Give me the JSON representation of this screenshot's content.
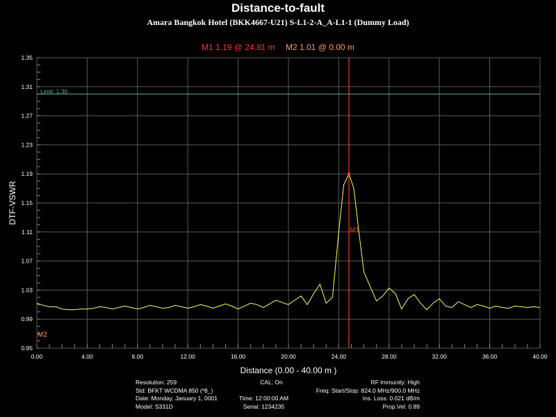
{
  "header": {
    "title": "Distance-to-fault",
    "subtitle": "Amara Bangkok Hotel (BKK4667-U21) S-L1-2-A_A-L1-1 (Dummy Load)",
    "marker1_readout": "M1  1.19 @ 24.81 m",
    "marker2_readout": "M2  1.01 @ 0.00 m"
  },
  "chart_data": {
    "type": "line",
    "xlabel": "Distance (0.00 - 40.00 m )",
    "ylabel": "DTF-VSWR",
    "xlim": [
      0,
      40
    ],
    "ylim": [
      0.95,
      1.35
    ],
    "x_ticks": [
      "0.00",
      "4.00",
      "8.00",
      "12.00",
      "16.00",
      "20.00",
      "24.00",
      "28.00",
      "32.00",
      "36.00",
      "40.00"
    ],
    "y_ticks": [
      "0.95",
      "0.99",
      "1.03",
      "1.07",
      "1.11",
      "1.15",
      "1.19",
      "1.23",
      "1.27",
      "1.31",
      "1.35"
    ],
    "grid": true,
    "limit": {
      "value": 1.3,
      "label": "Limit: 1.30"
    },
    "markers": [
      {
        "name": "M1",
        "x": 24.81,
        "y": 1.19
      },
      {
        "name": "M2",
        "x": 0.0,
        "y": 1.01
      }
    ],
    "series": [
      {
        "color": "#ffff66",
        "x": [
          0,
          0.5,
          1,
          1.5,
          2,
          2.5,
          3,
          3.5,
          4,
          4.5,
          5,
          5.5,
          6,
          6.5,
          7,
          7.5,
          8,
          8.5,
          9,
          9.5,
          10,
          10.5,
          11,
          11.5,
          12,
          12.5,
          13,
          13.5,
          14,
          14.5,
          15,
          15.5,
          16,
          16.5,
          17,
          17.5,
          18,
          18.5,
          19,
          19.5,
          20,
          20.5,
          21,
          21.5,
          22,
          22.5,
          23,
          23.5,
          24,
          24.4,
          24.81,
          25.2,
          25.6,
          26,
          26.5,
          27,
          27.5,
          28,
          28.5,
          29,
          29.5,
          30,
          30.5,
          31,
          31.5,
          32,
          32.5,
          33,
          33.5,
          34,
          34.5,
          35,
          35.5,
          36,
          36.5,
          37,
          37.5,
          38,
          38.5,
          39,
          39.5,
          40
        ],
        "values": [
          1.012,
          1.009,
          1.007,
          1.007,
          1.004,
          1.003,
          1.003,
          1.004,
          1.004,
          1.005,
          1.007,
          1.006,
          1.004,
          1.006,
          1.008,
          1.006,
          1.004,
          1.006,
          1.009,
          1.007,
          1.005,
          1.006,
          1.009,
          1.007,
          1.005,
          1.007,
          1.01,
          1.008,
          1.005,
          1.008,
          1.011,
          1.008,
          1.004,
          1.008,
          1.012,
          1.01,
          1.006,
          1.011,
          1.016,
          1.013,
          1.01,
          1.016,
          1.022,
          1.01,
          1.025,
          1.038,
          1.012,
          1.02,
          1.11,
          1.175,
          1.19,
          1.17,
          1.11,
          1.055,
          1.035,
          1.015,
          1.022,
          1.033,
          1.025,
          1.004,
          1.018,
          1.024,
          1.012,
          1.003,
          1.012,
          1.018,
          1.008,
          1.006,
          1.014,
          1.01,
          1.006,
          1.01,
          1.008,
          1.005,
          1.008,
          1.006,
          1.005,
          1.008,
          1.007,
          1.006,
          1.007,
          1.006
        ]
      }
    ]
  },
  "info": {
    "resolution": "Resolution: 259",
    "std": "Std: BFKT WCDMA 850 (*8_)",
    "date": "Date: Monday, January 1, 0001",
    "model": "Model: S331D",
    "cal": "CAL: On",
    "time": "Time: 12:00:00 AM",
    "serial": "Serial: 1234235",
    "rf_immunity": "RF Immunity: High",
    "freq": "Freq: Start/Stop: 824.0 MHz/900.0 MHz",
    "ins_loss": "Ins. Loss: 0.021 dB/m",
    "prop_vel": "Prop.Vel: 0.89"
  },
  "colors": {
    "trace": "#ffff66",
    "marker1": "#ff3333",
    "marker2": "#ff9966",
    "grid": "#5a5a5a",
    "limit": "#66aa88"
  }
}
